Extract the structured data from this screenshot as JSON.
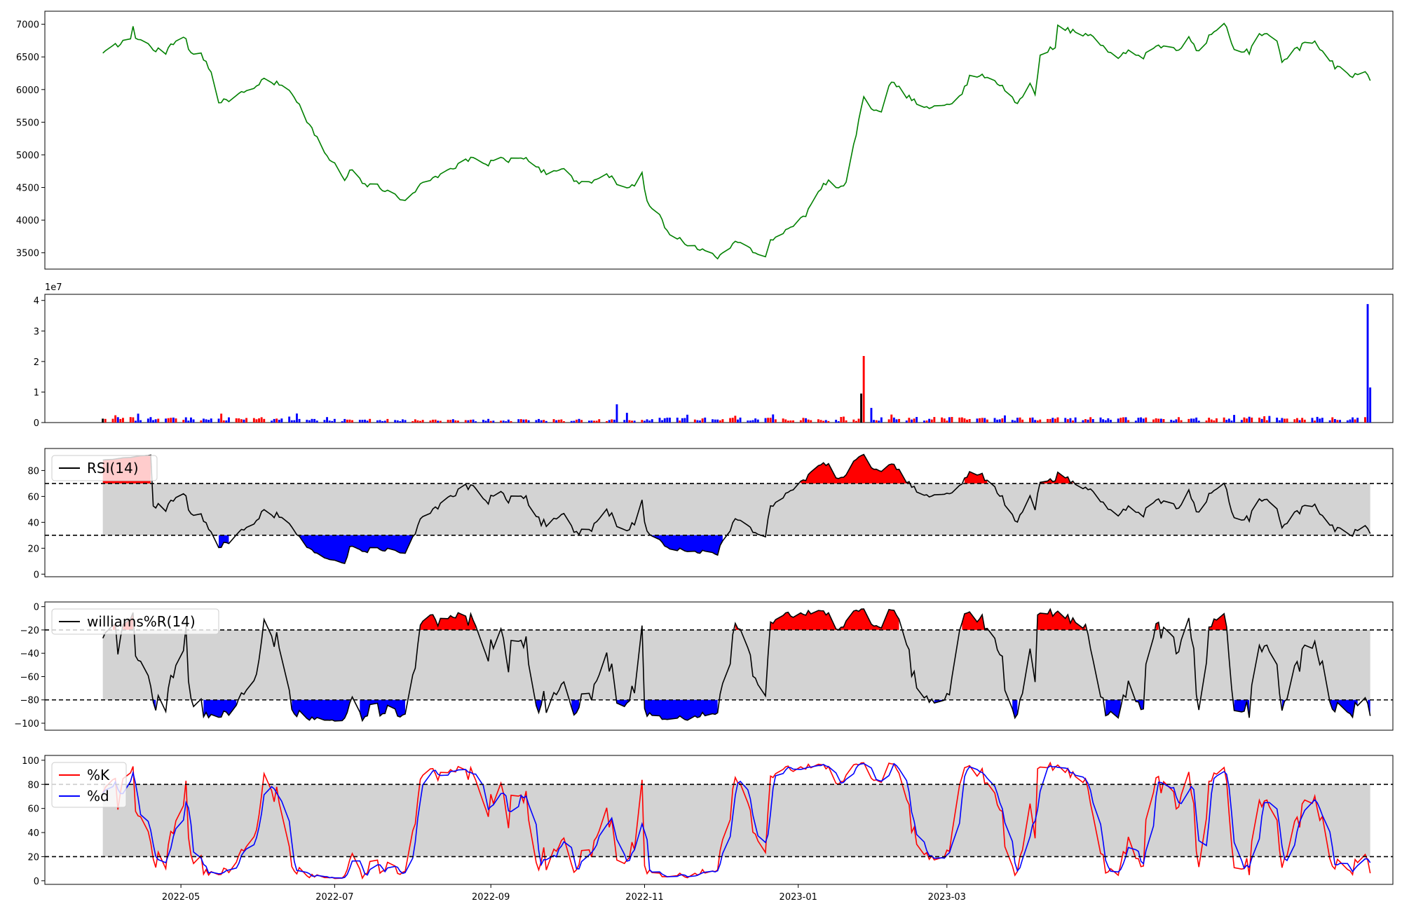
{
  "chart_data": [
    {
      "panel": "price",
      "type": "line",
      "series": [
        {
          "color": "#008000",
          "values": "price"
        }
      ],
      "ylim": [
        3250,
        7200
      ],
      "yticks": [
        3500,
        4000,
        4500,
        5000,
        5500,
        6000,
        6500,
        7000
      ],
      "ytick_labels": [
        "3500",
        "4000",
        "4500",
        "5000",
        "5500",
        "6000",
        "6500",
        "7000"
      ],
      "anchors": [
        [
          "2022-03-31",
          6540
        ],
        [
          "2022-04-07",
          6720
        ],
        [
          "2022-04-11",
          6780
        ],
        [
          "2022-04-12",
          6980
        ],
        [
          "2022-04-13",
          6780
        ],
        [
          "2022-04-20",
          6640
        ],
        [
          "2022-04-25",
          6560
        ],
        [
          "2022-04-27",
          6700
        ],
        [
          "2022-05-02",
          6840
        ],
        [
          "2022-05-05",
          6540
        ],
        [
          "2022-05-09",
          6540
        ],
        [
          "2022-05-13",
          6300
        ],
        [
          "2022-05-16",
          5840
        ],
        [
          "2022-05-20",
          5790
        ],
        [
          "2022-05-25",
          5960
        ],
        [
          "2022-05-31",
          6040
        ],
        [
          "2022-06-03",
          6150
        ],
        [
          "2022-06-10",
          6060
        ],
        [
          "2022-06-13",
          6000
        ],
        [
          "2022-06-17",
          5750
        ],
        [
          "2022-06-23",
          5300
        ],
        [
          "2022-06-30",
          4900
        ],
        [
          "2022-07-05",
          4650
        ],
        [
          "2022-07-08",
          4780
        ],
        [
          "2022-07-13",
          4550
        ],
        [
          "2022-07-19",
          4500
        ],
        [
          "2022-07-25",
          4400
        ],
        [
          "2022-07-29",
          4280
        ],
        [
          "2022-08-05",
          4600
        ],
        [
          "2022-08-12",
          4680
        ],
        [
          "2022-08-19",
          4860
        ],
        [
          "2022-08-24",
          4950
        ],
        [
          "2022-08-30",
          4820
        ],
        [
          "2022-09-02",
          4950
        ],
        [
          "2022-09-09",
          4920
        ],
        [
          "2022-09-15",
          4980
        ],
        [
          "2022-09-23",
          4700
        ],
        [
          "2022-09-30",
          4820
        ],
        [
          "2022-10-05",
          4560
        ],
        [
          "2022-10-11",
          4600
        ],
        [
          "2022-10-17",
          4720
        ],
        [
          "2022-10-21",
          4560
        ],
        [
          "2022-10-27",
          4520
        ],
        [
          "2022-10-31",
          4700
        ],
        [
          "2022-11-02",
          4300
        ],
        [
          "2022-11-08",
          3990
        ],
        [
          "2022-11-11",
          3800
        ],
        [
          "2022-11-18",
          3620
        ],
        [
          "2022-11-25",
          3560
        ],
        [
          "2022-11-30",
          3450
        ],
        [
          "2022-12-06",
          3650
        ],
        [
          "2022-12-09",
          3700
        ],
        [
          "2022-12-13",
          3550
        ],
        [
          "2022-12-19",
          3420
        ],
        [
          "2022-12-21",
          3700
        ],
        [
          "2022-12-27",
          3820
        ],
        [
          "2023-01-04",
          4100
        ],
        [
          "2023-01-09",
          4450
        ],
        [
          "2023-01-13",
          4600
        ],
        [
          "2023-01-18",
          4500
        ],
        [
          "2023-01-20",
          4600
        ],
        [
          "2023-01-27",
          5880
        ],
        [
          "2023-01-31",
          5650
        ],
        [
          "2023-02-03",
          5700
        ],
        [
          "2023-02-07",
          6120
        ],
        [
          "2023-02-14",
          5880
        ],
        [
          "2023-02-21",
          5720
        ],
        [
          "2023-02-28",
          5720
        ],
        [
          "2023-03-06",
          5900
        ],
        [
          "2023-03-10",
          6180
        ],
        [
          "2023-03-17",
          6220
        ],
        [
          "2023-03-24",
          6000
        ],
        [
          "2023-03-29",
          5810
        ],
        [
          "2023-04-03",
          6100
        ],
        [
          "2023-04-05",
          5880
        ],
        [
          "2023-04-07",
          6500
        ],
        [
          "2023-04-13",
          6680
        ],
        [
          "2023-04-14",
          6980
        ],
        [
          "2023-04-19",
          6900
        ],
        [
          "2023-04-28",
          6800
        ],
        [
          "2023-05-04",
          6550
        ],
        [
          "2023-05-08",
          6500
        ],
        [
          "2023-05-12",
          6620
        ],
        [
          "2023-05-17",
          6480
        ],
        [
          "2023-05-22",
          6620
        ],
        [
          "2023-05-26",
          6680
        ],
        [
          "2023-05-31",
          6600
        ],
        [
          "2023-06-05",
          6780
        ],
        [
          "2023-06-09",
          6560
        ],
        [
          "2023-06-14",
          6850
        ],
        [
          "2023-06-19",
          7020
        ],
        [
          "2023-06-23",
          6600
        ],
        [
          "2023-06-29",
          6580
        ],
        [
          "2023-07-03",
          6880
        ],
        [
          "2023-07-10",
          6760
        ],
        [
          "2023-07-12",
          6400
        ],
        [
          "2023-07-17",
          6600
        ],
        [
          "2023-07-24",
          6750
        ],
        [
          "2023-07-28",
          6620
        ],
        [
          "2023-08-02",
          6350
        ],
        [
          "2023-08-09",
          6230
        ],
        [
          "2023-08-14",
          6300
        ],
        [
          "2023-08-16",
          6100
        ]
      ]
    },
    {
      "panel": "volume",
      "type": "bar",
      "ylim": [
        0,
        42000000
      ],
      "yticks": [
        0,
        10000000,
        20000000,
        30000000,
        40000000
      ],
      "ytick_labels": [
        "0",
        "1",
        "2",
        "3",
        "4"
      ],
      "offset_label": "1e7",
      "colors": {
        "up": "#ff0000",
        "down": "#0000ff",
        "flat": "#000000"
      },
      "spikes": [
        [
          "2022-10-21",
          6000000
        ],
        [
          "2022-10-25",
          3200000
        ],
        [
          "2023-01-26",
          9500000
        ],
        [
          "2023-01-27",
          21800000
        ],
        [
          "2023-01-30",
          4800000
        ],
        [
          "2023-08-15",
          38800000
        ],
        [
          "2023-08-16",
          11500000
        ]
      ]
    },
    {
      "panel": "rsi",
      "type": "area",
      "legend": [
        "RSI(14)"
      ],
      "ylim": [
        -2,
        97
      ],
      "yticks": [
        0,
        20,
        40,
        60,
        80
      ],
      "ytick_labels": [
        "0",
        "20",
        "40",
        "60",
        "80"
      ],
      "thresholds": [
        30,
        70
      ],
      "colors": {
        "line": "#000000",
        "over": "#ff0000",
        "under": "#0000ff",
        "band": "#d3d3d3"
      }
    },
    {
      "panel": "williams",
      "type": "area",
      "legend": [
        "williams%R(14)"
      ],
      "ylim": [
        -106,
        4
      ],
      "yticks": [
        0,
        -20,
        -40,
        -60,
        -80,
        -100
      ],
      "ytick_labels": [
        "0",
        "−20",
        "−40",
        "−60",
        "−80",
        "−100"
      ],
      "thresholds": [
        -80,
        -20
      ],
      "colors": {
        "line": "#000000",
        "over": "#ff0000",
        "under": "#0000ff",
        "band": "#d3d3d3"
      }
    },
    {
      "panel": "stochastic",
      "type": "line",
      "legend": [
        "%K",
        "%d"
      ],
      "ylim": [
        -3,
        104
      ],
      "yticks": [
        0,
        20,
        40,
        60,
        80,
        100
      ],
      "ytick_labels": [
        "0",
        "20",
        "40",
        "60",
        "80",
        "100"
      ],
      "thresholds": [
        20,
        80
      ],
      "colors": {
        "k": "#ff0000",
        "d": "#0000ff",
        "band": "#d3d3d3"
      }
    }
  ],
  "x_axis": {
    "type": "date",
    "range": [
      "2022-03-08",
      "2023-08-25"
    ],
    "ticks": [
      "2022-05-01",
      "2022-07-01",
      "2022-09-01",
      "2022-11-01",
      "2023-01-01",
      "2023-03-01"
    ],
    "tick_labels": [
      "2022-05",
      "2022-07",
      "2022-09",
      "2022-11",
      "2023-01",
      "2023-03"
    ]
  }
}
